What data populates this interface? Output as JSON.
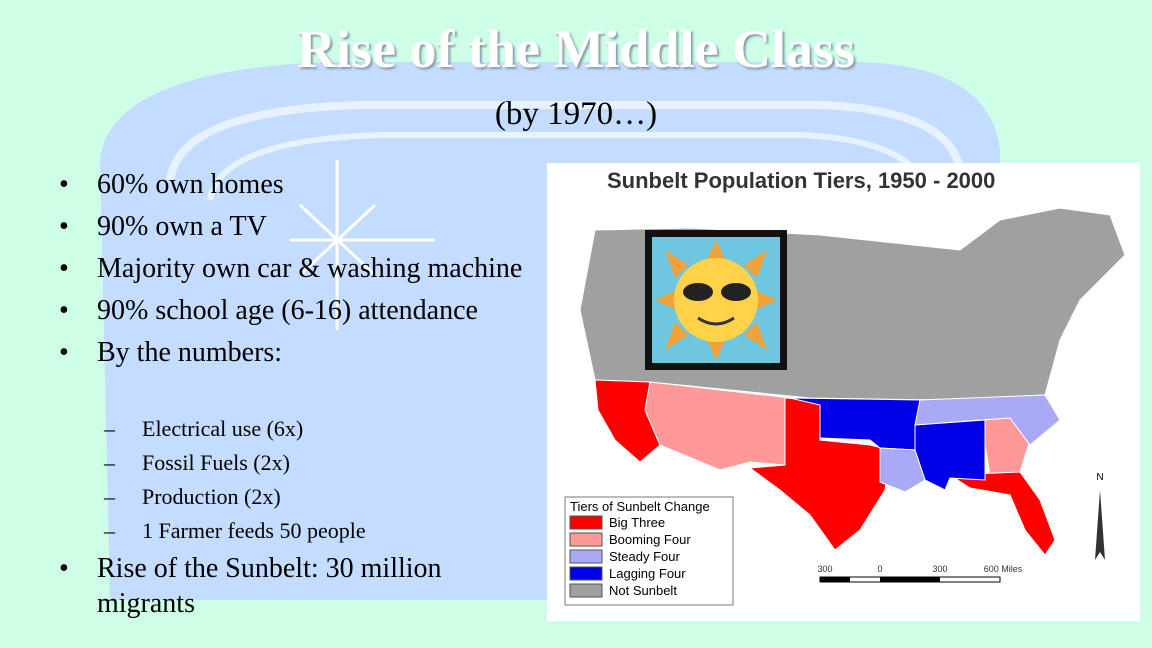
{
  "title": "Rise of the Middle Class",
  "subtitle": "(by 1970…)",
  "bullets": [
    "60% own homes",
    "90% own a TV",
    "Majority own car & washing machine",
    "90% school age (6-16) attendance",
    "By the numbers:"
  ],
  "sub_bullets": [
    "Electrical use (6x)",
    "Fossil Fuels (2x)",
    "Production (2x)",
    "1 Farmer feeds 50 people"
  ],
  "last_bullet": "Rise of the Sunbelt: 30 million migrants",
  "map": {
    "title": "Sunbelt Population Tiers, 1950 - 2000",
    "legend_title": "Tiers of Sunbelt Change",
    "legend": [
      {
        "label": "Big Three",
        "color": "#ff0000"
      },
      {
        "label": "Booming Four",
        "color": "#ff9999"
      },
      {
        "label": "Steady Four",
        "color": "#a9a9f5"
      },
      {
        "label": "Lagging Four",
        "color": "#0000e6"
      },
      {
        "label": "Not Sunbelt",
        "color": "#a0a0a0"
      }
    ],
    "scale": [
      "300",
      "0",
      "300",
      "600 Miles"
    ],
    "north": "N"
  }
}
